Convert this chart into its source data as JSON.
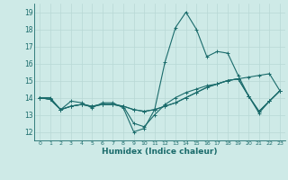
{
  "xlabel": "Humidex (Indice chaleur)",
  "xlim": [
    -0.5,
    23.5
  ],
  "ylim": [
    11.5,
    19.5
  ],
  "xticks": [
    0,
    1,
    2,
    3,
    4,
    5,
    6,
    7,
    8,
    9,
    10,
    11,
    12,
    13,
    14,
    15,
    16,
    17,
    18,
    19,
    20,
    21,
    22,
    23
  ],
  "yticks": [
    12,
    13,
    14,
    15,
    16,
    17,
    18,
    19
  ],
  "bg_color": "#ceeae7",
  "grid_color": "#b8d8d5",
  "line_color": "#1a6b6b",
  "series": [
    [
      14.0,
      14.0,
      13.3,
      13.8,
      13.7,
      13.4,
      13.7,
      13.7,
      13.4,
      12.0,
      12.2,
      13.3,
      16.1,
      18.1,
      19.0,
      18.0,
      16.4,
      16.7,
      16.6,
      15.3,
      14.1,
      13.1,
      13.8,
      14.4
    ],
    [
      14.0,
      13.9,
      13.3,
      13.5,
      13.6,
      13.5,
      13.6,
      13.6,
      13.5,
      13.3,
      13.2,
      13.3,
      13.5,
      13.7,
      14.0,
      14.3,
      14.6,
      14.8,
      15.0,
      15.1,
      15.2,
      15.3,
      15.4,
      14.4
    ],
    [
      14.0,
      13.9,
      13.3,
      13.5,
      13.6,
      13.5,
      13.6,
      13.6,
      13.5,
      12.5,
      12.3,
      13.0,
      13.6,
      14.0,
      14.3,
      14.5,
      14.7,
      14.8,
      15.0,
      15.1,
      14.1,
      13.2,
      13.8,
      14.4
    ],
    [
      14.0,
      13.9,
      13.3,
      13.5,
      13.6,
      13.5,
      13.6,
      13.6,
      13.5,
      13.3,
      13.2,
      13.3,
      13.5,
      13.7,
      14.0,
      14.3,
      14.6,
      14.8,
      15.0,
      15.1,
      14.1,
      13.2,
      13.8,
      14.4
    ]
  ]
}
